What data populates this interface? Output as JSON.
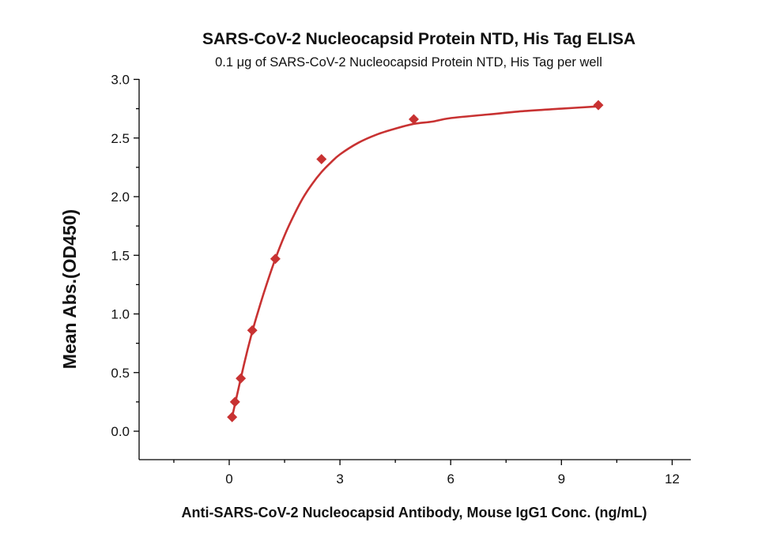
{
  "chart_data": {
    "type": "scatter",
    "title": "SARS-CoV-2 Nucleocapsid Protein NTD, His Tag ELISA",
    "subtitle": "0.1 μg of SARS-CoV-2 Nucleocapsid Protein NTD, His Tag per well",
    "xlabel": "Anti-SARS-CoV-2 Nucleocapsid Antibody, Mouse IgG1 Conc. (ng/mL)",
    "ylabel": "Mean Abs.(OD450)",
    "xlim": [
      -2.5,
      12.5
    ],
    "ylim": [
      -0.25,
      3.0
    ],
    "x_ticks": [
      0,
      3,
      6,
      9,
      12
    ],
    "x_tick_labels": [
      "0",
      "3",
      "6",
      "9",
      "12"
    ],
    "y_ticks": [
      0.0,
      0.5,
      1.0,
      1.5,
      2.0,
      2.5,
      3.0
    ],
    "y_tick_labels": [
      "0.0",
      "0.5",
      "1.0",
      "1.5",
      "2.0",
      "2.5",
      "3.0"
    ],
    "grid": false,
    "series": [
      {
        "marker": "diamond",
        "color": "#c83232",
        "x": [
          0.078,
          0.156,
          0.313,
          0.625,
          1.25,
          2.5,
          5,
          10
        ],
        "y": [
          0.12,
          0.25,
          0.45,
          0.86,
          1.47,
          2.32,
          2.66,
          2.78
        ]
      }
    ],
    "fit": {
      "color": "#c83232",
      "x": [
        0.078,
        0.2,
        0.4,
        0.6,
        0.8,
        1.0,
        1.25,
        1.5,
        1.75,
        2.0,
        2.25,
        2.5,
        2.75,
        3.0,
        3.5,
        4.0,
        4.5,
        5.0,
        5.5,
        6.0,
        7.0,
        8.0,
        9.0,
        10.0
      ],
      "y": [
        0.12,
        0.29,
        0.57,
        0.82,
        1.04,
        1.24,
        1.47,
        1.67,
        1.84,
        1.99,
        2.11,
        2.21,
        2.29,
        2.36,
        2.46,
        2.53,
        2.58,
        2.62,
        2.64,
        2.67,
        2.7,
        2.73,
        2.75,
        2.77
      ]
    }
  }
}
